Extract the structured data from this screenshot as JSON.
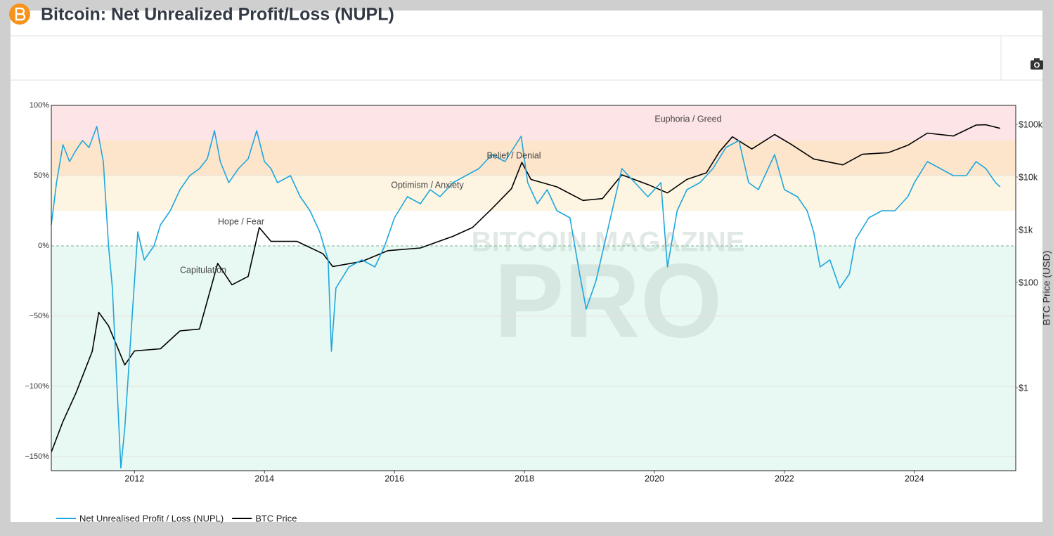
{
  "chart_data": {
    "type": "line",
    "title": "Bitcoin: Net Unrealized Profit/Loss (NUPL)",
    "y2_label": "BTC Price (USD)",
    "watermark": [
      "BITCOIN MAGAZINE",
      "PRO"
    ],
    "xlim": [
      2010.72,
      2025.56
    ],
    "xticks": [
      2012,
      2014,
      2016,
      2018,
      2020,
      2022,
      2024
    ],
    "ylim": [
      -160,
      100
    ],
    "yticks": [
      {
        "value": 100,
        "label": "100%"
      },
      {
        "value": 50,
        "label": "50%"
      },
      {
        "value": 0,
        "label": "0%"
      },
      {
        "value": -50,
        "label": "−50%"
      },
      {
        "value": -100,
        "label": "−100%"
      },
      {
        "value": -150,
        "label": "−150%"
      }
    ],
    "y2lim": [
      0.0267,
      229000
    ],
    "y2log": true,
    "y2ticks": [
      {
        "value": 1,
        "label": "$1"
      },
      {
        "value": 100,
        "label": "$100"
      },
      {
        "value": 1000,
        "label": "$1k"
      },
      {
        "value": 10000,
        "label": "$10k"
      },
      {
        "value": 100000,
        "label": "$100k"
      }
    ],
    "zones": [
      {
        "name": "Euphoria / Greed",
        "from": 75,
        "to": 100,
        "color": "#fde4e6"
      },
      {
        "name": "Belief / Denial",
        "from": 50,
        "to": 75,
        "color": "#fde5cc"
      },
      {
        "name": "Optimism / Anxiety",
        "from": 25,
        "to": 50,
        "color": "#fdf5e1"
      },
      {
        "name": "Hope / Fear",
        "from": 0,
        "to": 25,
        "color": "#ffffff"
      },
      {
        "name": "Capitulation",
        "from": -160,
        "to": 0,
        "color": "#e8f8f2"
      }
    ],
    "series": [
      {
        "name": "Net Unrealised Profit / Loss (NUPL)",
        "color": "#1ea7de",
        "x": [
          2010.72,
          2010.8,
          2010.9,
          2011.0,
          2011.1,
          2011.2,
          2011.3,
          2011.42,
          2011.52,
          2011.6,
          2011.66,
          2011.72,
          2011.79,
          2011.85,
          2011.95,
          2012.05,
          2012.15,
          2012.3,
          2012.4,
          2012.55,
          2012.7,
          2012.85,
          2013.0,
          2013.12,
          2013.23,
          2013.32,
          2013.45,
          2013.6,
          2013.75,
          2013.88,
          2014.0,
          2014.1,
          2014.2,
          2014.4,
          2014.55,
          2014.7,
          2014.85,
          2014.98,
          2015.03,
          2015.1,
          2015.3,
          2015.5,
          2015.7,
          2015.85,
          2016.0,
          2016.2,
          2016.4,
          2016.55,
          2016.7,
          2016.9,
          2017.1,
          2017.3,
          2017.5,
          2017.7,
          2017.95,
          2018.05,
          2018.2,
          2018.35,
          2018.5,
          2018.7,
          2018.85,
          2018.95,
          2019.1,
          2019.3,
          2019.5,
          2019.7,
          2019.9,
          2020.1,
          2020.2,
          2020.35,
          2020.5,
          2020.7,
          2020.9,
          2021.1,
          2021.3,
          2021.45,
          2021.6,
          2021.85,
          2022.0,
          2022.2,
          2022.35,
          2022.45,
          2022.55,
          2022.7,
          2022.85,
          2023.0,
          2023.1,
          2023.3,
          2023.5,
          2023.7,
          2023.9,
          2024.0,
          2024.2,
          2024.4,
          2024.6,
          2024.8,
          2024.95,
          2025.1,
          2025.25,
          2025.32
        ],
        "values": [
          15,
          45,
          72,
          60,
          68,
          75,
          70,
          85,
          60,
          0,
          -30,
          -90,
          -158,
          -130,
          -60,
          10,
          -10,
          0,
          15,
          25,
          40,
          50,
          55,
          62,
          82,
          60,
          45,
          55,
          62,
          82,
          60,
          55,
          45,
          50,
          35,
          25,
          10,
          -10,
          -75,
          -30,
          -15,
          -10,
          -15,
          0,
          20,
          35,
          30,
          40,
          35,
          45,
          50,
          55,
          65,
          60,
          78,
          45,
          30,
          40,
          25,
          20,
          -20,
          -45,
          -25,
          15,
          55,
          45,
          35,
          45,
          -15,
          25,
          40,
          45,
          55,
          70,
          75,
          45,
          40,
          65,
          40,
          35,
          25,
          10,
          -15,
          -10,
          -30,
          -20,
          5,
          20,
          25,
          25,
          35,
          45,
          60,
          55,
          50,
          50,
          60,
          55,
          45,
          42
        ]
      },
      {
        "name": "BTC Price",
        "color": "#000000",
        "axis": "y2",
        "x": [
          2010.72,
          2010.9,
          2011.1,
          2011.35,
          2011.45,
          2011.6,
          2011.85,
          2012.0,
          2012.4,
          2012.7,
          2013.0,
          2013.28,
          2013.5,
          2013.75,
          2013.92,
          2014.1,
          2014.5,
          2014.9,
          2015.05,
          2015.5,
          2015.9,
          2016.4,
          2016.9,
          2017.2,
          2017.5,
          2017.8,
          2017.96,
          2018.1,
          2018.5,
          2018.9,
          2019.2,
          2019.5,
          2019.9,
          2020.2,
          2020.5,
          2020.8,
          2021.0,
          2021.2,
          2021.5,
          2021.85,
          2022.1,
          2022.45,
          2022.9,
          2023.2,
          2023.6,
          2023.9,
          2024.2,
          2024.6,
          2024.95,
          2025.1,
          2025.32
        ],
        "values": [
          0.06,
          0.23,
          0.8,
          4.9,
          27,
          15,
          2.7,
          5,
          5.5,
          12,
          13,
          230,
          90,
          130,
          1100,
          600,
          600,
          350,
          200,
          250,
          400,
          450,
          750,
          1100,
          2500,
          6000,
          19000,
          9000,
          6500,
          3600,
          3900,
          11000,
          7200,
          5000,
          9000,
          12000,
          30000,
          58000,
          34000,
          64000,
          42000,
          22000,
          17000,
          27000,
          29000,
          40000,
          68000,
          60000,
          97000,
          98000,
          84000
        ]
      }
    ]
  }
}
